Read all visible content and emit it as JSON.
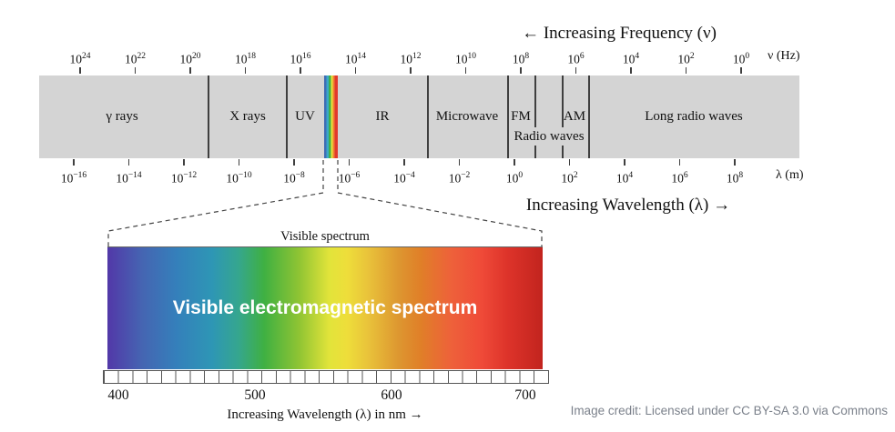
{
  "header": {
    "frequency_title": "← Increasing Frequency (ν)",
    "wavelength_title": "Increasing Wavelength (λ) →"
  },
  "scales": {
    "base": "10",
    "frequency": {
      "exponents": [
        "24",
        "22",
        "20",
        "18",
        "16",
        "14",
        "12",
        "10",
        "8",
        "6",
        "4",
        "2",
        "0"
      ],
      "unit": "ν (Hz)"
    },
    "wavelength": {
      "exponents": [
        "−16",
        "−14",
        "−12",
        "−10",
        "−8",
        "−6",
        "−4",
        "−2",
        "0",
        "2",
        "4",
        "6",
        "8"
      ],
      "unit": "λ (m)"
    }
  },
  "band": {
    "regions": {
      "gamma": "γ rays",
      "xrays": "X rays",
      "uv": "UV",
      "ir": "IR",
      "microwave": "Microwave",
      "fm": "FM",
      "am": "AM",
      "radio_waves": "Radio waves",
      "long_radio": "Long radio waves"
    }
  },
  "visible": {
    "caption": "Visible spectrum",
    "overlay": "Visible electromagnetic spectrum",
    "axis_ticks": [
      "400",
      "500",
      "600",
      "700"
    ],
    "axis_label": "Increasing Wavelength (λ) in nm →"
  },
  "footer": {
    "credit": "Image credit: Licensed under CC BY-SA 3.0 via Commons"
  },
  "colors": {
    "band_gray": "#d4d4d4",
    "line_dark": "#3f3f3f",
    "credit_gray": "#7b818b",
    "visible_strip_colors": [
      "#3f6db5",
      "#3aa8c9",
      "#43b048",
      "#e8e23a",
      "#ef8432",
      "#e23a2c"
    ]
  }
}
